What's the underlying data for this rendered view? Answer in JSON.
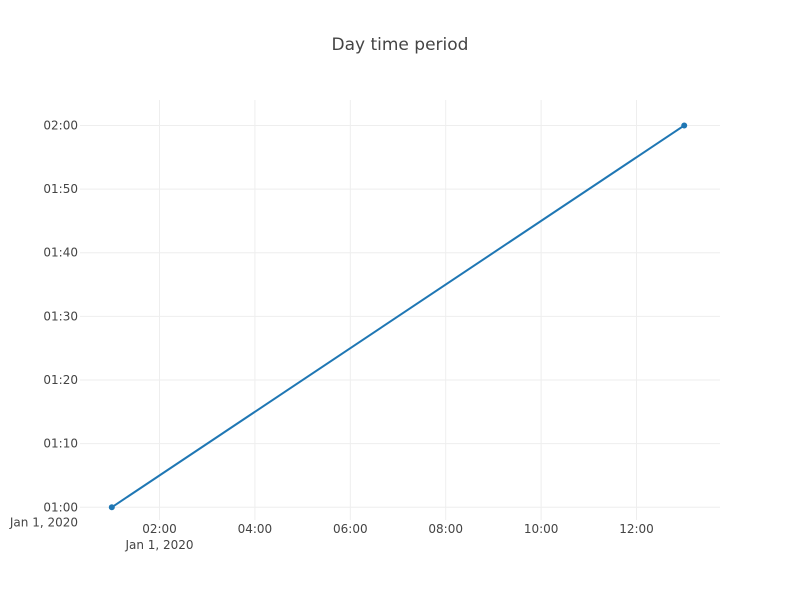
{
  "chart_data": {
    "type": "line",
    "title": "Day time period",
    "xlabel": "",
    "ylabel": "",
    "x_axis": {
      "kind": "datetime",
      "range": [
        "2020-01-01 00:20",
        "2020-01-01 13:45"
      ],
      "ticks": [
        {
          "value": "2020-01-01 02:00",
          "label": "02:00",
          "sublabel": "Jan 1, 2020"
        },
        {
          "value": "2020-01-01 04:00",
          "label": "04:00",
          "sublabel": ""
        },
        {
          "value": "2020-01-01 06:00",
          "label": "06:00",
          "sublabel": ""
        },
        {
          "value": "2020-01-01 08:00",
          "label": "08:00",
          "sublabel": ""
        },
        {
          "value": "2020-01-01 10:00",
          "label": "10:00",
          "sublabel": ""
        },
        {
          "value": "2020-01-01 12:00",
          "label": "12:00",
          "sublabel": ""
        }
      ]
    },
    "y_axis": {
      "kind": "datetime",
      "range": [
        "2020-01-01 00:58",
        "2020-01-01 02:04"
      ],
      "ticks": [
        {
          "value": "2020-01-01 01:00",
          "label": "01:00",
          "sublabel": "Jan 1, 2020"
        },
        {
          "value": "2020-01-01 01:10",
          "label": "01:10",
          "sublabel": ""
        },
        {
          "value": "2020-01-01 01:20",
          "label": "01:20",
          "sublabel": ""
        },
        {
          "value": "2020-01-01 01:30",
          "label": "01:30",
          "sublabel": ""
        },
        {
          "value": "2020-01-01 01:40",
          "label": "01:40",
          "sublabel": ""
        },
        {
          "value": "2020-01-01 01:50",
          "label": "01:50",
          "sublabel": ""
        },
        {
          "value": "2020-01-01 02:00",
          "label": "02:00",
          "sublabel": ""
        }
      ]
    },
    "grid": true,
    "legend": "none",
    "series": [
      {
        "color": "#1f77b4",
        "mode": "lines+markers",
        "x": [
          "2020-01-01 01:00",
          "2020-01-01 13:00"
        ],
        "y": [
          "2020-01-01 01:00",
          "2020-01-01 02:00"
        ]
      }
    ]
  }
}
